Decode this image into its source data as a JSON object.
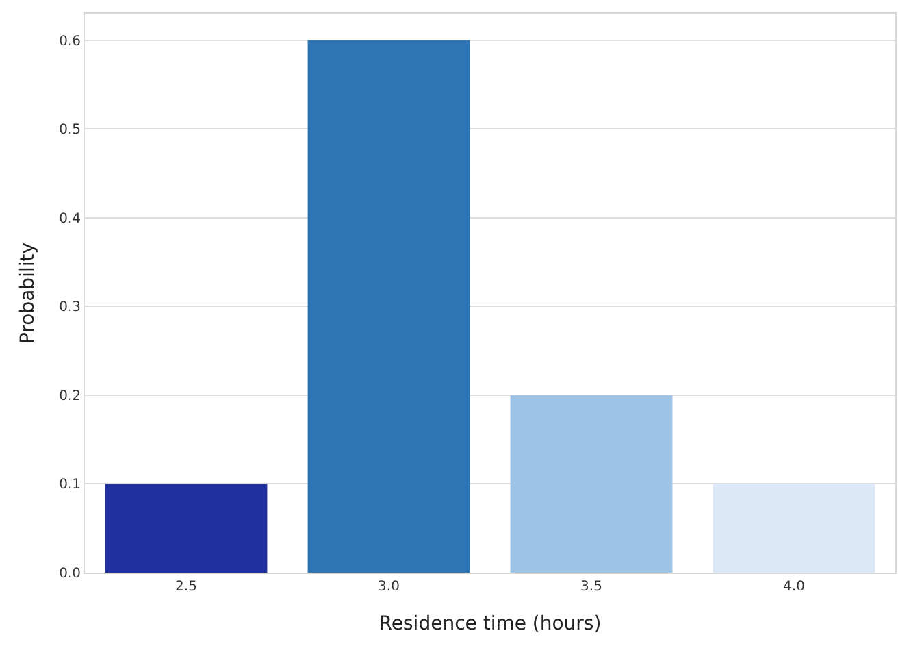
{
  "chart_data": {
    "type": "bar",
    "xlabel": "Residence time (hours)",
    "ylabel": "Probability",
    "categories": [
      "2.5",
      "3.0",
      "3.5",
      "4.0"
    ],
    "values": [
      0.1,
      0.6,
      0.2,
      0.1
    ],
    "colors": [
      "#2231a0",
      "#2e75b6",
      "#9dc3e6",
      "#dbe8f7"
    ],
    "ylim": [
      0,
      0.63
    ],
    "yticks": [
      {
        "value": 0,
        "label": "0.0"
      },
      0.1,
      0.2,
      0.3,
      0.4,
      0.5,
      0.6
    ],
    "grid": "y"
  }
}
